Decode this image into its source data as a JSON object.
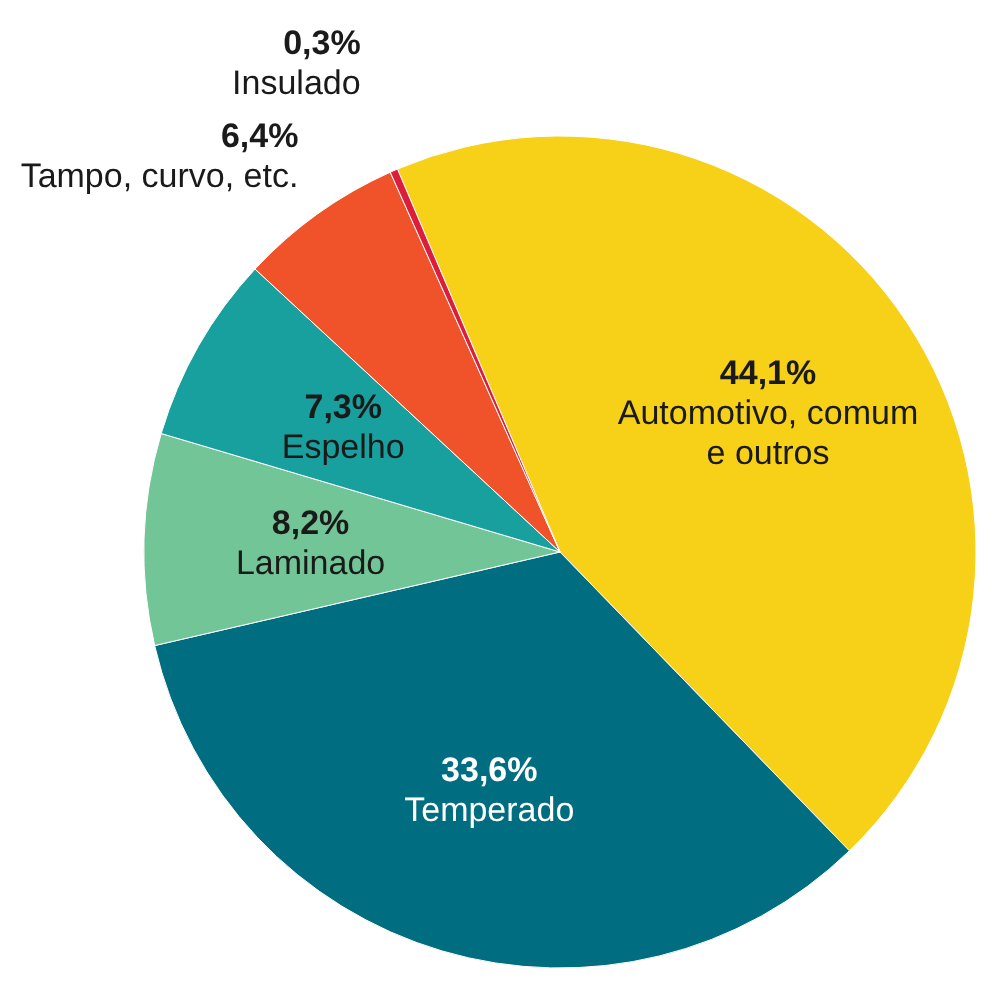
{
  "chart_data": {
    "type": "pie",
    "categories": [
      "Automotivo, comum e outros",
      "Temperado",
      "Laminado",
      "Espelho",
      "Tampo, curvo, etc.",
      "Insulado"
    ],
    "values": [
      44.1,
      33.6,
      8.2,
      7.3,
      6.4,
      0.3
    ],
    "value_labels": [
      "44,1%",
      "33,6%",
      "8,2%",
      "7,3%",
      "6,4%",
      "0,3%"
    ],
    "colors": [
      "#f7d117",
      "#006e80",
      "#72c596",
      "#17a09e",
      "#f0532a",
      "#dc1e3c"
    ]
  }
}
